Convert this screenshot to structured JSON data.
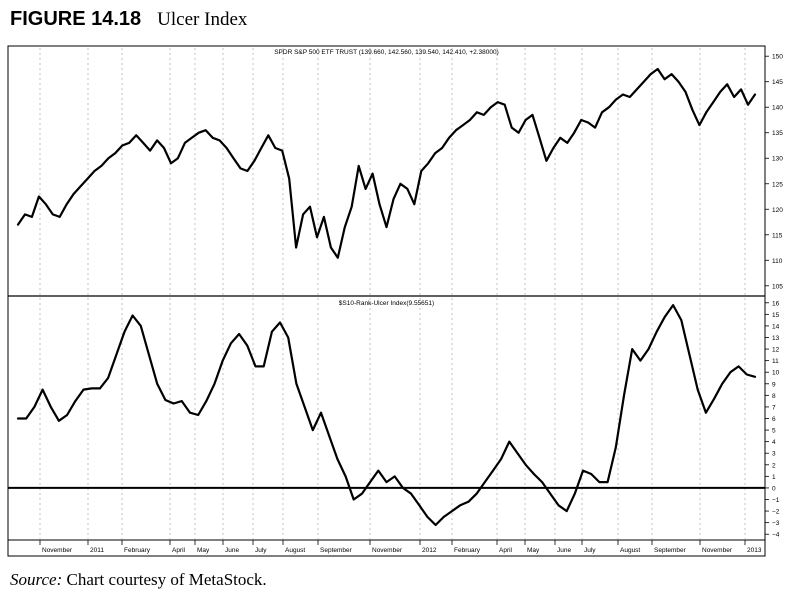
{
  "figure": {
    "number": "FIGURE 14.18",
    "title": "Ulcer Index"
  },
  "source": {
    "label": "Source:",
    "text": "Chart courtesy of MetaStock."
  },
  "chart_data": [
    {
      "type": "line",
      "title": "SPDR S&P 500 ETF TRUST (139.660, 142.560, 139.540, 142.410, +2.38000)",
      "ylim": [
        103,
        152
      ],
      "yticks": [
        105,
        110,
        115,
        120,
        125,
        130,
        135,
        140,
        145,
        150
      ],
      "grid": "vertical-dashed",
      "series": [
        {
          "values": [
            117,
            119,
            118.5,
            122.5,
            121,
            119,
            118.5,
            121,
            123,
            124.5,
            126,
            127.5,
            128.5,
            130,
            131,
            132.5,
            133,
            134.5,
            133,
            131.5,
            133.5,
            132,
            129,
            130,
            133,
            134,
            135,
            135.5,
            134,
            133.5,
            132,
            130,
            128,
            127.5,
            129.5,
            132,
            134.5,
            132,
            131.5,
            126,
            112.5,
            119,
            120.5,
            114.5,
            118.5,
            112.5,
            110.5,
            116.5,
            120.5,
            128.5,
            124,
            127,
            121,
            116.5,
            122,
            125,
            124,
            121,
            127.5,
            129,
            131,
            132,
            134,
            135.5,
            136.5,
            137.5,
            139,
            138.5,
            140,
            141,
            140.5,
            136,
            135,
            137.5,
            138.5,
            134,
            129.5,
            132,
            134,
            133,
            135,
            137.5,
            137,
            136,
            139,
            140,
            141.5,
            142.5,
            142,
            143.5,
            145,
            146.5,
            147.5,
            145.5,
            146.5,
            145,
            143,
            139.5,
            136.5,
            139,
            141,
            143,
            144.5,
            142,
            143.5,
            140.5,
            142.5
          ]
        }
      ]
    },
    {
      "type": "line",
      "title": "$S10-Rank-Ulcer Index(9.55651)",
      "ylim": [
        -4.5,
        16.5
      ],
      "yticks": [
        -4,
        -3,
        -2,
        -1,
        0,
        1,
        2,
        3,
        4,
        5,
        6,
        7,
        8,
        9,
        10,
        11,
        12,
        13,
        14,
        15,
        16
      ],
      "reference_line": 0,
      "series": [
        {
          "values": [
            6,
            6,
            7,
            8.5,
            7,
            5.8,
            6.3,
            7.5,
            8.5,
            8.6,
            8.6,
            9.5,
            11.5,
            13.5,
            14.9,
            14,
            11.5,
            9,
            7.6,
            7.3,
            7.5,
            6.5,
            6.3,
            7.5,
            9,
            11,
            12.5,
            13.3,
            12.3,
            10.5,
            10.5,
            13.5,
            14.3,
            13,
            9,
            7,
            5,
            6.5,
            4.5,
            2.5,
            1,
            -1,
            -0.5,
            0.5,
            1.5,
            0.5,
            1,
            0,
            -0.5,
            -1.5,
            -2.5,
            -3.2,
            -2.5,
            -2,
            -1.5,
            -1.2,
            -0.5,
            0.5,
            1.5,
            2.5,
            4,
            3,
            2,
            1.2,
            0.5,
            -0.5,
            -1.5,
            -2,
            -0.5,
            1.5,
            1.2,
            0.5,
            0.5,
            3.5,
            8,
            12,
            11,
            12,
            13.5,
            14.8,
            15.8,
            14.5,
            11.5,
            8.5,
            6.5,
            7.7,
            9,
            10,
            10.5,
            9.8,
            9.6
          ]
        }
      ]
    },
    {
      "type": "axis",
      "xlabels": [
        "November",
        "2011",
        "February",
        "April",
        "May",
        "June",
        "July",
        "August",
        "September",
        "November",
        "2012",
        "February",
        "April",
        "May",
        "June",
        "July",
        "August",
        "September",
        "November",
        "2013"
      ]
    }
  ]
}
